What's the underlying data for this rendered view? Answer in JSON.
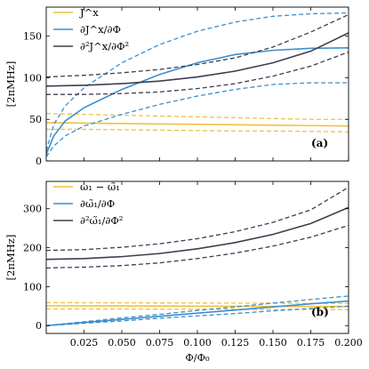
{
  "chart_data": [
    {
      "type": "line",
      "panel_tag": "(a)",
      "xlabel": "",
      "ylabel": "[2πMHz]",
      "xlim": [
        0.0,
        0.2
      ],
      "ylim": [
        0,
        185
      ],
      "xticks": [
        0.025,
        0.05,
        0.075,
        0.1,
        0.125,
        0.15,
        0.175,
        0.2
      ],
      "xtick_labels": [
        "",
        "",
        "",
        "",
        "",
        "",
        "",
        ""
      ],
      "yticks": [
        0,
        50,
        100,
        150
      ],
      "ytick_labels": [
        "0",
        "50",
        "100",
        "150"
      ],
      "legend_position": "top-left",
      "series": [
        {
          "name": "J^x",
          "color": "#f0c040",
          "style": "solid",
          "x": [
            0.0,
            0.025,
            0.05,
            0.075,
            0.1,
            0.125,
            0.15,
            0.175,
            0.2
          ],
          "y": [
            46,
            45.5,
            45,
            44.5,
            44,
            43.5,
            43,
            42.5,
            42
          ],
          "band_upper": [
            57,
            56,
            55,
            54,
            53,
            52,
            51,
            50,
            50
          ],
          "band_lower": [
            38,
            38,
            37.5,
            37,
            36.5,
            36,
            36,
            35.5,
            35
          ]
        },
        {
          "name": "∂J^x/∂Φ",
          "color": "#3c8fcf",
          "style": "solid",
          "x": [
            0.0,
            0.005,
            0.0125,
            0.025,
            0.05,
            0.075,
            0.1,
            0.125,
            0.15,
            0.175,
            0.2
          ],
          "y": [
            8,
            30,
            48,
            64,
            86,
            104,
            118,
            128,
            133,
            135.5,
            136
          ],
          "band_upper": [
            12,
            44,
            66,
            88,
            118,
            140,
            156,
            167,
            174,
            177,
            178
          ],
          "band_lower": [
            5,
            18,
            30,
            42,
            56,
            68,
            78,
            86,
            92,
            94,
            94
          ]
        },
        {
          "name": "∂²J^x/∂Φ²",
          "color": "#3e3e50",
          "style": "solid",
          "x": [
            0.0,
            0.025,
            0.05,
            0.075,
            0.1,
            0.125,
            0.15,
            0.175,
            0.2
          ],
          "y": [
            90,
            91,
            93,
            96,
            101,
            108,
            118,
            132,
            154
          ],
          "band_upper": [
            101,
            103,
            106,
            110,
            116,
            124,
            137,
            155,
            176
          ],
          "band_lower": [
            80,
            80,
            81,
            83,
            87,
            93,
            102,
            114,
            131
          ]
        }
      ]
    },
    {
      "type": "line",
      "panel_tag": "(b)",
      "xlabel": "Φ/Φ₀",
      "ylabel": "[2πMHz]",
      "xlim": [
        0.0,
        0.2
      ],
      "ylim": [
        -20,
        370
      ],
      "xticks": [
        0.025,
        0.05,
        0.075,
        0.1,
        0.125,
        0.15,
        0.175,
        0.2
      ],
      "xtick_labels": [
        "0.025",
        "0.050",
        "0.075",
        "0.100",
        "0.125",
        "0.150",
        "0.175",
        "0.200"
      ],
      "yticks": [
        0,
        100,
        200,
        300
      ],
      "ytick_labels": [
        "0",
        "100",
        "200",
        "300"
      ],
      "legend_position": "top-left",
      "series": [
        {
          "name": "ω₁ − ω̃₁",
          "color": "#f0c040",
          "style": "solid",
          "x": [
            0.0,
            0.05,
            0.1,
            0.15,
            0.2
          ],
          "y": [
            51,
            50.5,
            50,
            49.5,
            49
          ],
          "band_upper": [
            59,
            58.5,
            58,
            57.5,
            57
          ],
          "band_lower": [
            43,
            42.5,
            42,
            41.5,
            41
          ]
        },
        {
          "name": "∂ω̃₁/∂Φ",
          "color": "#3c8fcf",
          "style": "solid",
          "x": [
            0.0,
            0.025,
            0.05,
            0.075,
            0.1,
            0.125,
            0.15,
            0.175,
            0.2
          ],
          "y": [
            0,
            8,
            16,
            24,
            32,
            40,
            48,
            56,
            63
          ],
          "band_upper": [
            0,
            10,
            20,
            29,
            39,
            48,
            58,
            67,
            76
          ],
          "band_lower": [
            0,
            6,
            12,
            19,
            25,
            31,
            38,
            44,
            50
          ]
        },
        {
          "name": "∂²ω̃₁/∂Φ²",
          "color": "#3e3e50",
          "style": "solid",
          "x": [
            0.0,
            0.025,
            0.05,
            0.075,
            0.1,
            0.125,
            0.15,
            0.175,
            0.2
          ],
          "y": [
            170,
            172,
            177,
            185,
            197,
            213,
            234,
            262,
            303
          ],
          "band_upper": [
            193,
            195,
            201,
            210,
            223,
            241,
            265,
            297,
            355
          ],
          "band_lower": [
            148,
            150,
            154,
            161,
            172,
            186,
            204,
            227,
            257
          ]
        }
      ]
    }
  ]
}
